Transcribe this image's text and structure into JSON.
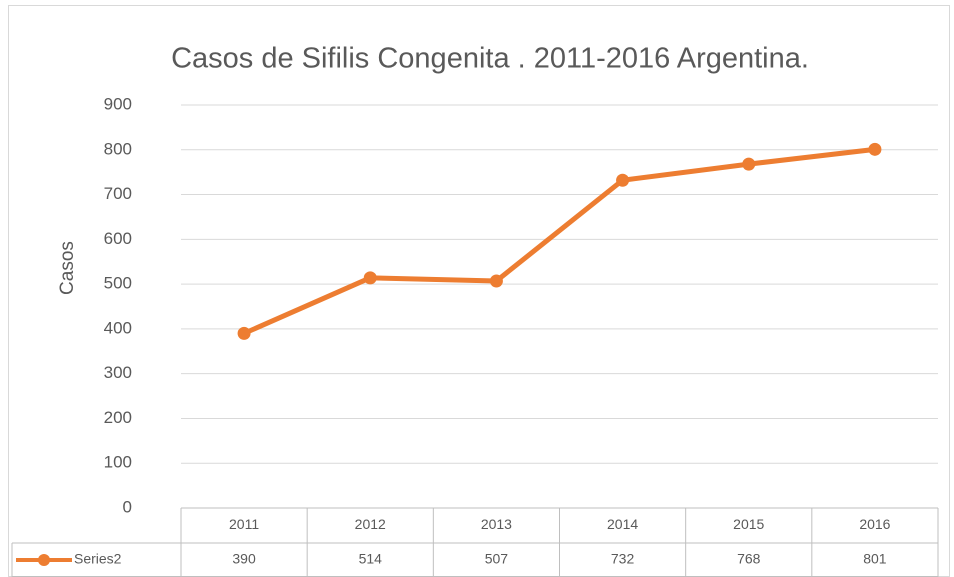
{
  "chart_data": {
    "type": "line",
    "title": "Casos de Sifilis Congenita . 2011-2016 Argentina.",
    "y_label": "Casos",
    "categories": [
      "2011",
      "2012",
      "2013",
      "2014",
      "2015",
      "2016"
    ],
    "series": [
      {
        "name": "Series2",
        "color": "#ed7d31",
        "values": [
          390,
          514,
          507,
          732,
          768,
          801
        ]
      }
    ],
    "ylim": [
      0,
      900
    ],
    "yticks": [
      0,
      100,
      200,
      300,
      400,
      500,
      600,
      700,
      800,
      900
    ],
    "grid": true,
    "data_table": true
  }
}
